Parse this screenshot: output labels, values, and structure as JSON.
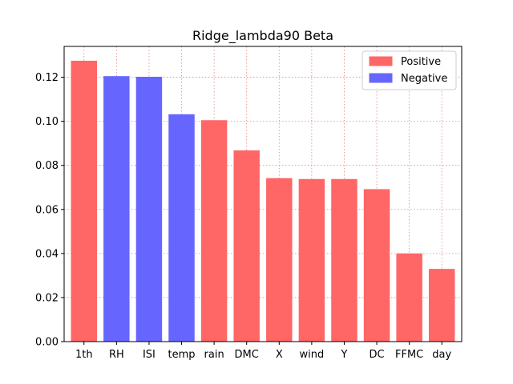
{
  "chart_data": {
    "type": "bar",
    "title": "Ridge_lambda90 Beta",
    "xlabel": "",
    "ylabel": "",
    "categories": [
      "1th",
      "RH",
      "ISI",
      "temp",
      "rain",
      "DMC",
      "X",
      "wind",
      "Y",
      "DC",
      "FFMC",
      "day"
    ],
    "values": [
      0.1275,
      0.1205,
      0.1202,
      0.1032,
      0.1005,
      0.0868,
      0.0742,
      0.0738,
      0.0738,
      0.0692,
      0.04,
      0.033
    ],
    "signs": [
      "Positive",
      "Negative",
      "Negative",
      "Negative",
      "Positive",
      "Positive",
      "Positive",
      "Positive",
      "Positive",
      "Positive",
      "Positive",
      "Positive"
    ],
    "ylim": [
      0,
      0.134
    ],
    "yticks": [
      0.0,
      0.02,
      0.04,
      0.06,
      0.08,
      0.1,
      0.12
    ],
    "ytick_labels": [
      "0.00",
      "0.02",
      "0.04",
      "0.06",
      "0.08",
      "0.10",
      "0.12"
    ],
    "grid": true,
    "legend": {
      "placement": "top-right",
      "entries": [
        {
          "name": "Positive",
          "color": "#ff6666"
        },
        {
          "name": "Negative",
          "color": "#6666ff"
        }
      ]
    },
    "colors": {
      "Positive": "#ff6666",
      "Negative": "#6666ff",
      "grid": "#e86060"
    }
  }
}
